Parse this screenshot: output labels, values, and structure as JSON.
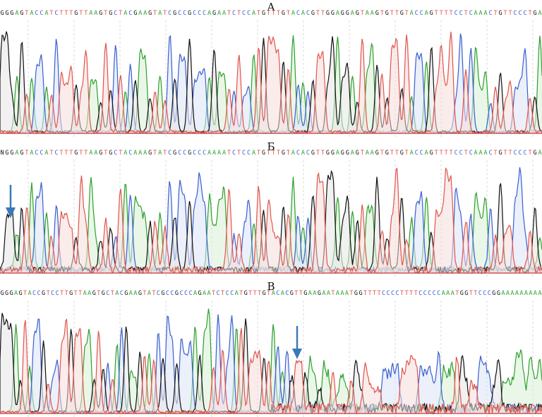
{
  "colors": {
    "A": "#2ca02c",
    "C": "#3a5fd0",
    "G": "#111111",
    "T": "#e0554c",
    "N": "#111111",
    "arrow": "#3b78b8",
    "fill_A": "#d9f0d6",
    "fill_C": "#dbe4f7",
    "fill_T": "#f6dcda",
    "fill_G": "#e6e6e6",
    "grid": "#d8d8d8",
    "baseline": "#cc3333"
  },
  "chart_data": [
    {
      "type": "chromatogram",
      "title": "А",
      "sequence": "GGGAGTACCATCTTTGTTAAGTGCTACGAAGTATCGCCGCCCAGAATCTCCATGTTTGTACACGTTGGAGGAGTAAGTGTTGTACCAGTTTTCCTCAAACTGTTCCCTGA",
      "arrow": false
    },
    {
      "type": "chromatogram",
      "title": "Б",
      "sequence": "NGGAGTACCATCTTTGTTAAGTGCTACAAAGTATCGCCGCCCAAAATCTCCATGTTTGTACACGTTGGAGGAGTAAGTGTTGTACCAGTTTTCCTCAAACTGTTCCCTGA",
      "arrow": true
    },
    {
      "type": "chromatogram",
      "title": "В",
      "sequence": "GGGAGTACCGTCCTTGTTAAGTGCTACGAAGTATCGCCGCCCAGAATCTCCATGTTTGTACACGTTGAAGAATAAATGGTTTTCCCCTTTTCCCCCAAATGGTTCCCGGAAAAAAAAA",
      "arrow": true
    }
  ]
}
